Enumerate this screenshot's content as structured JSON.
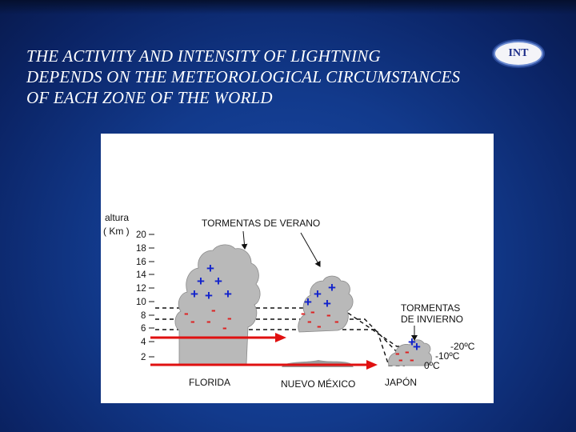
{
  "slide": {
    "title_lines": [
      "THE ACTIVITY AND INTENSITY OF LIGHTNING",
      "DEPENDS ON THE METEOROLOGICAL CIRCUMSTANCES",
      "OF EACH ZONE OF THE WORLD"
    ],
    "badge": "INT"
  },
  "figure": {
    "axis_label_1": "altura",
    "axis_label_2": "( Km )",
    "ticks": [
      "20",
      "18",
      "16",
      "14",
      "12",
      "10",
      "8",
      "6",
      "4",
      "2"
    ],
    "summer_label": "TORMENTAS DE VERANO",
    "winter_label_1": "TORMENTAS",
    "winter_label_2": "DE INVIERNO",
    "temps": [
      "-20ºC",
      "-10ºC",
      "0ºC"
    ],
    "regions": [
      "FLORIDA",
      "NUEVO MÉXICO",
      "JAPÓN"
    ],
    "plus_sign": "+",
    "minus_sign": "-",
    "colors": {
      "positive": "#1122cc",
      "negative": "#dd2222",
      "cloud": "#b8b8b8",
      "arrow": "#e01010"
    }
  }
}
